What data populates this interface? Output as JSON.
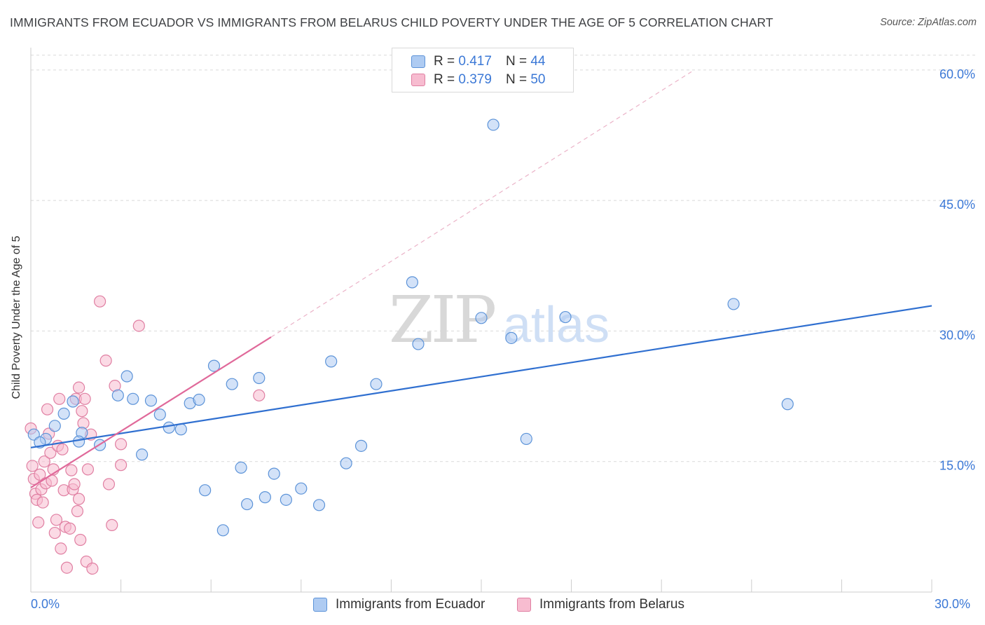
{
  "header": {
    "title": "IMMIGRANTS FROM ECUADOR VS IMMIGRANTS FROM BELARUS CHILD POVERTY UNDER THE AGE OF 5 CORRELATION CHART",
    "source": "Source: ZipAtlas.com"
  },
  "legend": {
    "r_label": "R =",
    "n_label": "N =",
    "ecuador": {
      "r": "0.417",
      "n": "44"
    },
    "belarus": {
      "r": "0.379",
      "n": "50"
    }
  },
  "bottom_legend": {
    "ecuador": "Immigrants from Ecuador",
    "belarus": "Immigrants from Belarus"
  },
  "watermark": {
    "zip": "ZIP",
    "atlas": "atlas"
  },
  "colors": {
    "ecuador_fill": "#aecbf2",
    "ecuador_stroke": "#5c93d8",
    "ecuador_line": "#2f6fd0",
    "belarus_fill": "#f7bcd0",
    "belarus_stroke": "#e07fa2",
    "belarus_line": "#e0699a",
    "axis_text": "#3b78d6",
    "grid": "#d9d9d9"
  },
  "chart_data": {
    "type": "scatter",
    "title": "IMMIGRANTS FROM ECUADOR VS IMMIGRANTS FROM BELARUS CHILD POVERTY UNDER THE AGE OF 5 CORRELATION CHART",
    "xlabel": "",
    "ylabel": "Child Poverty Under the Age of 5",
    "xlim": [
      0,
      30
    ],
    "ylim": [
      0,
      62
    ],
    "x_tick_labels": [
      "0.0%",
      "30.0%"
    ],
    "y_ticks": [
      15,
      30,
      45,
      60
    ],
    "y_tick_labels": [
      "15.0%",
      "30.0%",
      "45.0%",
      "60.0%"
    ],
    "grid": true,
    "legend_position": "top-center",
    "series": [
      {
        "name": "Immigrants from Ecuador",
        "r": 0.417,
        "n": 44,
        "trend": {
          "x0": 0,
          "y0": 16.6,
          "x1": 30,
          "y1": 32.9
        },
        "points": [
          [
            0.1,
            18.1
          ],
          [
            0.5,
            17.6
          ],
          [
            0.8,
            19.1
          ],
          [
            1.1,
            20.5
          ],
          [
            1.4,
            21.9
          ],
          [
            1.7,
            18.3
          ],
          [
            1.6,
            17.3
          ],
          [
            2.3,
            16.9
          ],
          [
            2.9,
            22.6
          ],
          [
            3.2,
            24.8
          ],
          [
            3.4,
            22.2
          ],
          [
            3.7,
            15.8
          ],
          [
            4.0,
            22.0
          ],
          [
            4.3,
            20.4
          ],
          [
            4.6,
            18.9
          ],
          [
            5.0,
            18.7
          ],
          [
            5.3,
            21.7
          ],
          [
            5.6,
            22.1
          ],
          [
            5.8,
            11.7
          ],
          [
            6.1,
            26.0
          ],
          [
            6.4,
            7.1
          ],
          [
            6.7,
            23.9
          ],
          [
            7.0,
            14.3
          ],
          [
            7.2,
            10.1
          ],
          [
            7.6,
            24.6
          ],
          [
            7.8,
            10.9
          ],
          [
            8.1,
            13.6
          ],
          [
            8.5,
            10.6
          ],
          [
            9.0,
            11.9
          ],
          [
            9.6,
            10.0
          ],
          [
            10.0,
            26.5
          ],
          [
            10.5,
            14.8
          ],
          [
            11.0,
            16.8
          ],
          [
            11.5,
            23.9
          ],
          [
            12.7,
            35.6
          ],
          [
            12.9,
            28.5
          ],
          [
            15.0,
            31.5
          ],
          [
            15.4,
            53.7
          ],
          [
            16.0,
            29.2
          ],
          [
            16.5,
            17.6
          ],
          [
            17.8,
            31.6
          ],
          [
            23.4,
            33.1
          ],
          [
            25.2,
            21.6
          ],
          [
            0.3,
            17.2
          ]
        ]
      },
      {
        "name": "Immigrants from Belarus",
        "r": 0.379,
        "n": 50,
        "trend": {
          "x0": 0,
          "y0": 12.0,
          "x1": 8.0,
          "y1": 29.3,
          "dash_to": {
            "x": 22.0,
            "y": 59.8
          }
        },
        "points": [
          [
            0.0,
            18.8
          ],
          [
            0.05,
            14.5
          ],
          [
            0.1,
            13.0
          ],
          [
            0.15,
            11.3
          ],
          [
            0.2,
            10.6
          ],
          [
            0.25,
            8.0
          ],
          [
            0.3,
            13.5
          ],
          [
            0.35,
            11.8
          ],
          [
            0.4,
            10.3
          ],
          [
            0.45,
            15.0
          ],
          [
            0.5,
            12.5
          ],
          [
            0.55,
            21.0
          ],
          [
            0.6,
            18.2
          ],
          [
            0.65,
            16.0
          ],
          [
            0.7,
            12.8
          ],
          [
            0.75,
            14.1
          ],
          [
            0.8,
            6.8
          ],
          [
            0.85,
            8.3
          ],
          [
            0.9,
            16.8
          ],
          [
            0.95,
            22.2
          ],
          [
            1.0,
            5.0
          ],
          [
            1.05,
            16.4
          ],
          [
            1.1,
            11.7
          ],
          [
            1.15,
            7.5
          ],
          [
            1.2,
            2.8
          ],
          [
            1.3,
            7.3
          ],
          [
            1.35,
            14.0
          ],
          [
            1.4,
            11.8
          ],
          [
            1.45,
            12.4
          ],
          [
            1.5,
            22.2
          ],
          [
            1.55,
            9.3
          ],
          [
            1.6,
            23.5
          ],
          [
            1.65,
            6.0
          ],
          [
            1.7,
            20.8
          ],
          [
            1.75,
            19.4
          ],
          [
            1.8,
            22.2
          ],
          [
            1.85,
            3.5
          ],
          [
            1.9,
            14.1
          ],
          [
            2.0,
            18.1
          ],
          [
            2.05,
            2.7
          ],
          [
            2.3,
            33.4
          ],
          [
            2.5,
            26.6
          ],
          [
            2.6,
            12.4
          ],
          [
            2.7,
            7.7
          ],
          [
            2.8,
            23.7
          ],
          [
            3.0,
            17.0
          ],
          [
            3.0,
            14.6
          ],
          [
            3.6,
            30.6
          ],
          [
            7.6,
            22.6
          ],
          [
            1.6,
            10.7
          ]
        ]
      }
    ]
  }
}
